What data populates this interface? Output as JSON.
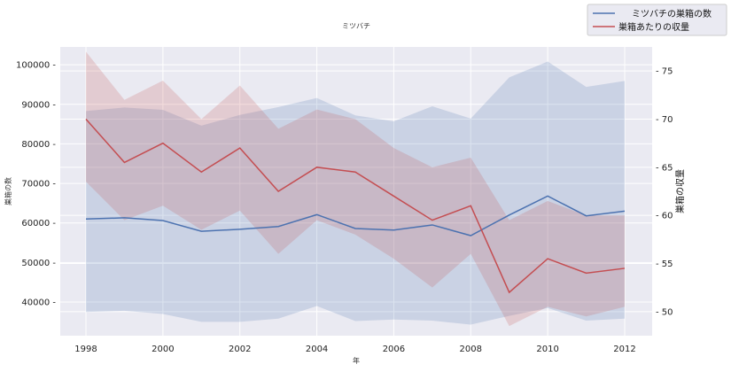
{
  "chart_data": {
    "type": "line",
    "title": "ミツバチ",
    "xlabel": "年",
    "ylabel_left": "巣箱の数",
    "ylabel_right": "巣箱の収量",
    "x": [
      1998,
      1999,
      2000,
      2001,
      2002,
      2003,
      2004,
      2005,
      2006,
      2007,
      2008,
      2009,
      2010,
      2011,
      2012
    ],
    "xticks": [
      1998,
      2000,
      2002,
      2004,
      2006,
      2008,
      2010,
      2012
    ],
    "yticks_left": [
      40000,
      50000,
      60000,
      70000,
      80000,
      90000,
      100000
    ],
    "yticks_right": [
      50,
      55,
      60,
      65,
      70,
      75
    ],
    "ylim_left": [
      31500,
      104500
    ],
    "ylim_right": [
      47.5,
      77.5
    ],
    "grid": true,
    "legend_position": "top-right",
    "series": [
      {
        "name": "ミツバチの巣箱の数",
        "axis": "left",
        "color": "#4c72b0",
        "values": [
          61000,
          61300,
          60600,
          57900,
          58400,
          59100,
          62100,
          58600,
          58200,
          59500,
          56800,
          62000,
          66800,
          61800,
          63000
        ],
        "band_low": [
          37500,
          37800,
          37000,
          35000,
          35000,
          35800,
          39000,
          35200,
          35600,
          35300,
          34300,
          36500,
          38500,
          35300,
          35800
        ],
        "band_high": [
          88300,
          89200,
          88600,
          84600,
          87300,
          89300,
          91600,
          87200,
          85700,
          89500,
          86400,
          96800,
          100800,
          94400,
          95900
        ]
      },
      {
        "name": "巣箱あたりの収量",
        "axis": "right",
        "color": "#c44e52",
        "values": [
          70,
          65.5,
          67.5,
          64.5,
          67,
          62.5,
          65,
          64.5,
          62,
          59.5,
          61,
          52,
          55.5,
          54,
          54.5
        ],
        "band_low": [
          63.5,
          59.5,
          61,
          58.5,
          60.5,
          56,
          59.5,
          58,
          55.5,
          52.5,
          56,
          48.5,
          50.5,
          49.5,
          50.5
        ],
        "band_high": [
          77,
          72,
          74,
          70,
          73.5,
          69,
          71,
          70,
          67,
          65,
          66,
          59.5,
          61.5,
          60,
          60
        ]
      }
    ]
  }
}
